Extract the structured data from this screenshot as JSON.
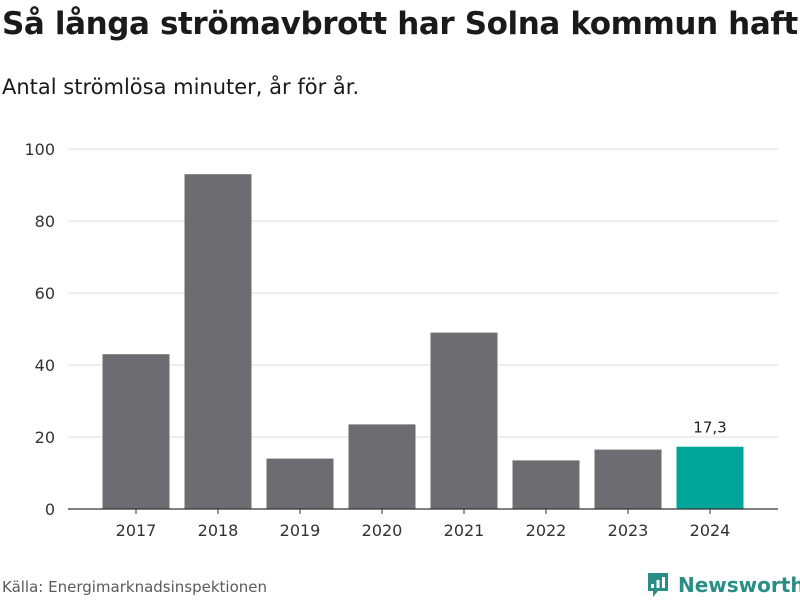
{
  "title": "Så långa strömavbrott har Solna kommun haft",
  "subtitle": "Antal strömlösa minuter, år för år.",
  "source": "Källa: Energimarknadsinspektionen",
  "brand": {
    "name": "Newsworthy",
    "icon": "newsworthy-logo-icon",
    "color": "#2a8e86"
  },
  "chart_data": {
    "type": "bar",
    "title": "Så långa strömavbrott har Solna kommun haft",
    "subtitle": "Antal strömlösa minuter, år för år.",
    "xlabel": "",
    "ylabel": "",
    "categories": [
      "2017",
      "2018",
      "2019",
      "2020",
      "2021",
      "2022",
      "2023",
      "2024"
    ],
    "values": [
      43,
      93,
      14,
      23.5,
      49,
      13.5,
      16.5,
      17.3
    ],
    "ylim": [
      0,
      100
    ],
    "yticks": [
      0,
      20,
      40,
      60,
      80,
      100
    ],
    "grid": true,
    "bar_color": "#6d6c71",
    "highlight_color": "#00a599",
    "highlight_index": 7,
    "data_labels": [
      {
        "index": 7,
        "text": "17,3"
      }
    ]
  }
}
